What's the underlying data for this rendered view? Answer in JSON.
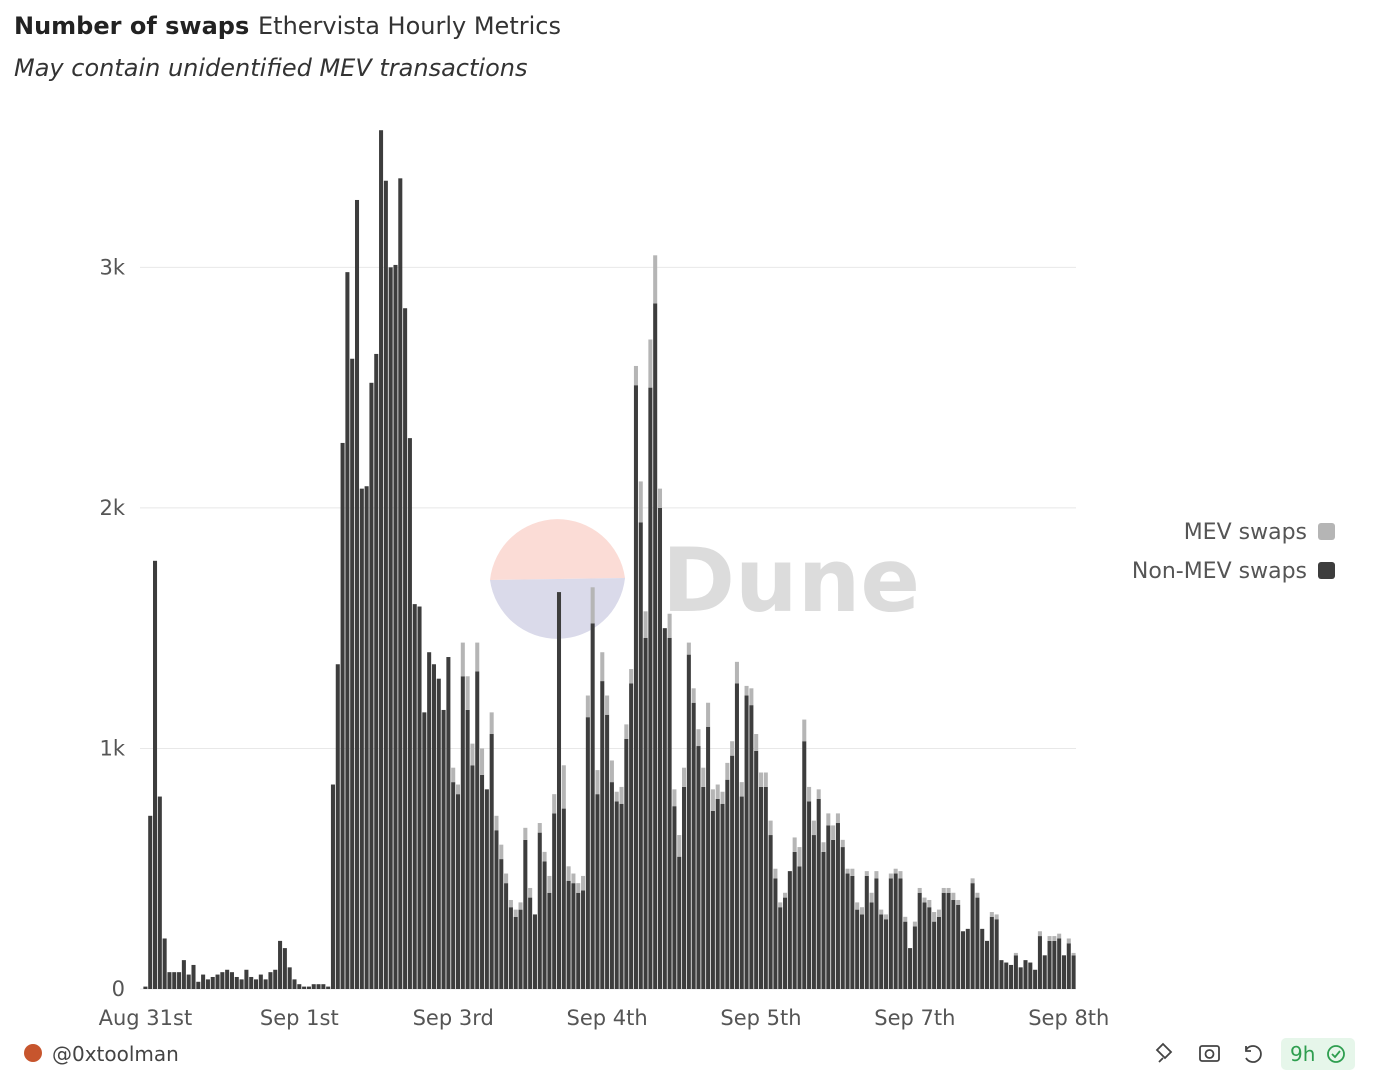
{
  "chart_data": {
    "type": "stacked-bar",
    "title": "Number of swaps",
    "subtitle": "Ethervista Hourly Metrics",
    "note": "May contain unidentified MEV transactions",
    "watermark": "Dune",
    "author": "@0xtoolman",
    "refresh": "9h",
    "categories": [
      "Aug 31st",
      null,
      null,
      null,
      null,
      null,
      null,
      null,
      null,
      null,
      null,
      null,
      null,
      null,
      null,
      null,
      null,
      null,
      null,
      null,
      null,
      null,
      null,
      null,
      null,
      null,
      null,
      null,
      null,
      null,
      null,
      null,
      "Sep 1st",
      null,
      null,
      null,
      null,
      null,
      null,
      null,
      null,
      null,
      null,
      null,
      null,
      null,
      null,
      null,
      null,
      null,
      null,
      null,
      null,
      null,
      null,
      null,
      null,
      null,
      null,
      null,
      null,
      null,
      null,
      null,
      "Sep 3rd",
      null,
      null,
      null,
      null,
      null,
      null,
      null,
      null,
      null,
      null,
      null,
      null,
      null,
      null,
      null,
      null,
      null,
      null,
      null,
      null,
      null,
      null,
      null,
      null,
      null,
      null,
      null,
      null,
      null,
      null,
      null,
      "Sep 4th",
      null,
      null,
      null,
      null,
      null,
      null,
      null,
      null,
      null,
      null,
      null,
      null,
      null,
      null,
      null,
      null,
      null,
      null,
      null,
      null,
      null,
      null,
      null,
      null,
      null,
      null,
      null,
      null,
      null,
      null,
      null,
      "Sep 5th",
      null,
      null,
      null,
      null,
      null,
      null,
      null,
      null,
      null,
      null,
      null,
      null,
      null,
      null,
      null,
      null,
      null,
      null,
      null,
      null,
      null,
      null,
      null,
      null,
      null,
      null,
      null,
      null,
      null,
      null,
      null,
      "Sep 7th",
      null,
      null,
      null,
      null,
      null,
      null,
      null,
      null,
      null,
      null,
      null,
      null,
      null,
      null,
      null,
      null,
      null,
      null,
      null,
      null,
      null,
      null,
      null,
      null,
      null,
      null,
      null,
      null,
      null,
      null,
      null,
      "Sep 8th",
      null
    ],
    "series": [
      {
        "name": "MEV swaps",
        "color": "#b5b5b5",
        "values": [
          0,
          0,
          0,
          0,
          0,
          0,
          0,
          0,
          0,
          0,
          0,
          0,
          0,
          0,
          0,
          0,
          0,
          0,
          0,
          0,
          0,
          0,
          0,
          0,
          0,
          0,
          0,
          0,
          0,
          0,
          0,
          0,
          0,
          0,
          0,
          0,
          0,
          0,
          0,
          0,
          0,
          0,
          0,
          0,
          0,
          0,
          0,
          0,
          0,
          0,
          0,
          0,
          0,
          0,
          0,
          0,
          0,
          0,
          0,
          0,
          0,
          0,
          0,
          0,
          60,
          40,
          140,
          140,
          90,
          120,
          110,
          0,
          90,
          60,
          60,
          40,
          30,
          30,
          30,
          50,
          40,
          0,
          40,
          40,
          70,
          80,
          0,
          180,
          60,
          40,
          40,
          60,
          90,
          150,
          100,
          120,
          80,
          90,
          40,
          70,
          60,
          60,
          80,
          170,
          110,
          200,
          200,
          80,
          0,
          100,
          70,
          90,
          80,
          50,
          60,
          70,
          80,
          100,
          90,
          60,
          50,
          70,
          60,
          90,
          60,
          40,
          70,
          70,
          60,
          60,
          60,
          40,
          20,
          20,
          0,
          60,
          80,
          90,
          60,
          60,
          40,
          40,
          50,
          60,
          40,
          30,
          20,
          30,
          30,
          30,
          20,
          40,
          30,
          20,
          20,
          20,
          20,
          30,
          20,
          0,
          20,
          20,
          20,
          30,
          40,
          30,
          20,
          20,
          30,
          20,
          0,
          0,
          20,
          20,
          0,
          0,
          20,
          20,
          0,
          0,
          0,
          10,
          0,
          0,
          0,
          0,
          20,
          0,
          20,
          20,
          20,
          0,
          20,
          10
        ]
      },
      {
        "name": "Non-MEV swaps",
        "color": "#3d3d3d",
        "values": [
          10,
          720,
          1780,
          800,
          210,
          70,
          70,
          70,
          120,
          60,
          100,
          30,
          60,
          40,
          50,
          60,
          70,
          80,
          70,
          50,
          40,
          80,
          50,
          40,
          60,
          40,
          70,
          80,
          200,
          170,
          90,
          40,
          20,
          10,
          10,
          20,
          20,
          20,
          10,
          850,
          1350,
          2270,
          2980,
          2620,
          3280,
          2080,
          2090,
          2520,
          2640,
          3570,
          3360,
          3000,
          3010,
          3370,
          2830,
          2290,
          1600,
          1590,
          1150,
          1400,
          1350,
          1290,
          1160,
          1380,
          860,
          810,
          1300,
          1160,
          930,
          1320,
          890,
          830,
          1060,
          660,
          540,
          440,
          340,
          300,
          330,
          620,
          380,
          310,
          650,
          530,
          400,
          730,
          1650,
          750,
          450,
          440,
          400,
          410,
          1130,
          1520,
          810,
          1280,
          1140,
          860,
          780,
          770,
          1040,
          1270,
          2510,
          1940,
          1460,
          2500,
          2850,
          2000,
          1500,
          1460,
          760,
          550,
          840,
          1390,
          1190,
          1010,
          840,
          1090,
          740,
          790,
          770,
          870,
          970,
          1270,
          800,
          1220,
          1180,
          990,
          840,
          840,
          640,
          460,
          340,
          380,
          490,
          570,
          510,
          1030,
          780,
          640,
          790,
          570,
          680,
          620,
          690,
          590,
          480,
          470,
          330,
          310,
          470,
          360,
          460,
          310,
          290,
          460,
          480,
          460,
          280,
          170,
          260,
          400,
          360,
          340,
          280,
          300,
          400,
          400,
          370,
          350,
          240,
          250,
          440,
          380,
          250,
          200,
          300,
          290,
          120,
          110,
          100,
          140,
          90,
          120,
          110,
          80,
          220,
          140,
          200,
          200,
          210,
          140,
          190,
          140
        ]
      }
    ],
    "ylim": [
      0,
      3600
    ],
    "yticks": [
      0,
      {
        "value": 1000,
        "label": "1k"
      },
      {
        "value": 2000,
        "label": "2k"
      },
      {
        "value": 3000,
        "label": "3k"
      }
    ],
    "grid": true,
    "legend": "right"
  }
}
